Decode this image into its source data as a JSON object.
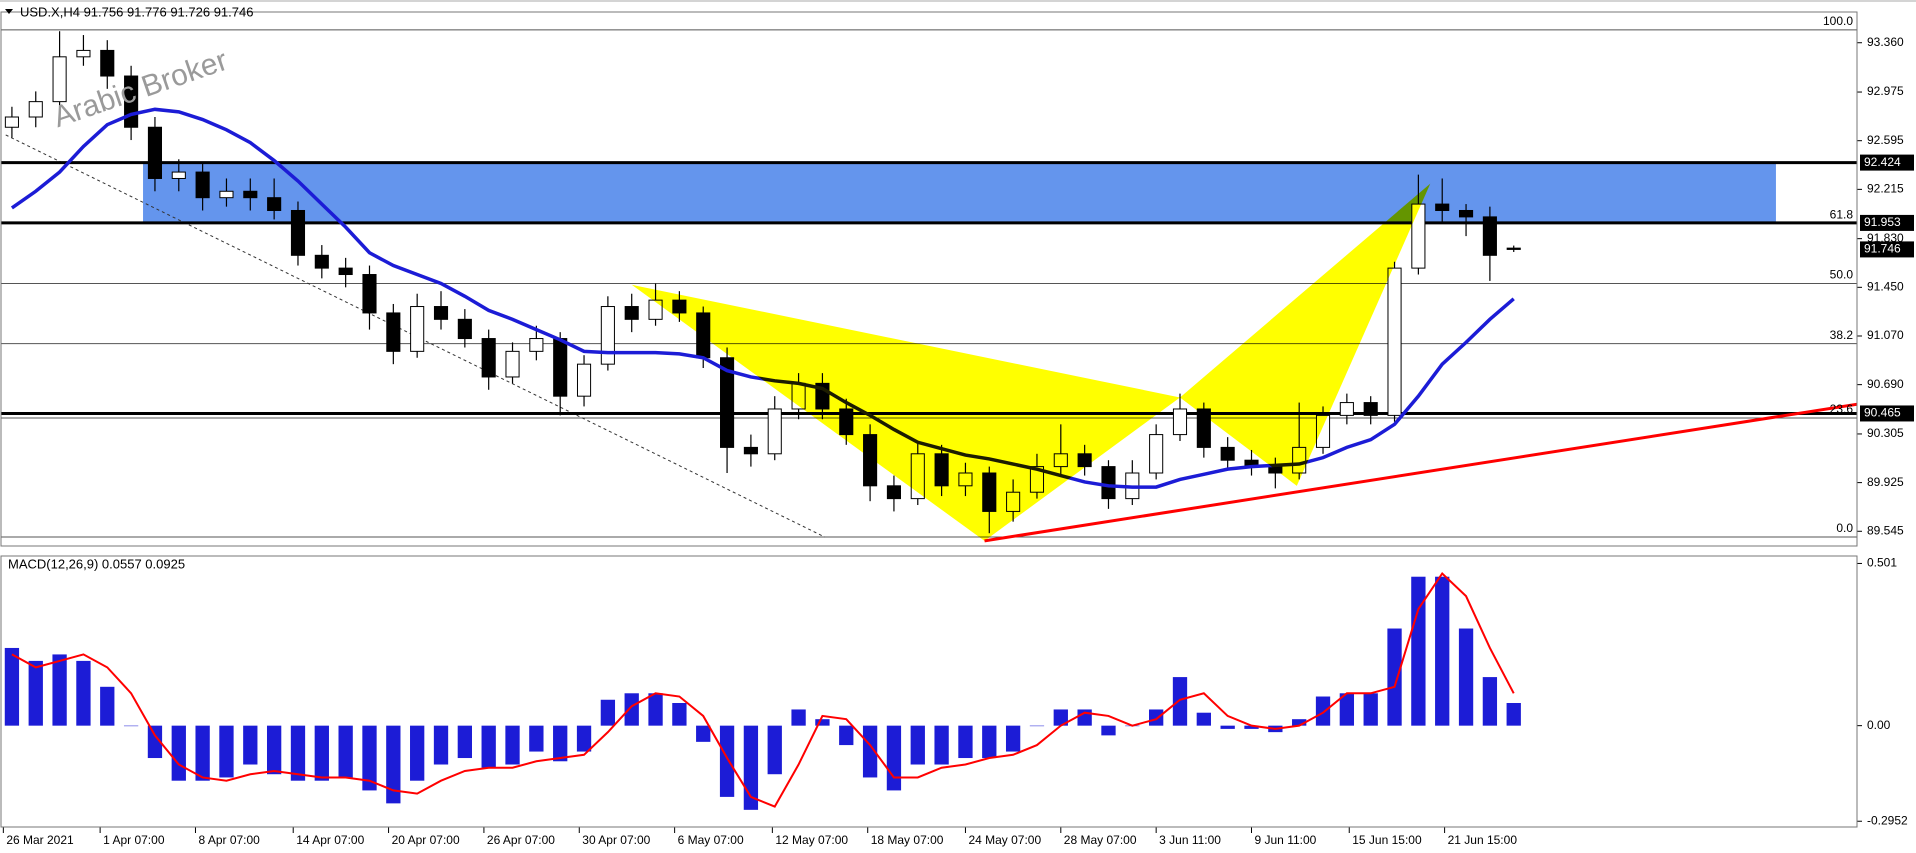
{
  "chart_data": [
    {
      "type": "candlestick",
      "title": "USD.X,H4 91.756 91.776 91.726 91.746",
      "watermark": "Arabic Broker",
      "xlim": [
        -0.5,
        77.4
      ],
      "xticks": [
        {
          "value": -0.36,
          "label": "26 Mar 2021"
        },
        {
          "value": 3.7,
          "label": "1 Apr 07:00"
        },
        {
          "value": 7.7,
          "label": "8 Apr 07:00"
        },
        {
          "value": 11.8,
          "label": "14 Apr 07:00"
        },
        {
          "value": 15.8,
          "label": "20 Apr 07:00"
        },
        {
          "value": 19.8,
          "label": "26 Apr 07:00"
        },
        {
          "value": 23.8,
          "label": "30 Apr 07:00"
        },
        {
          "value": 27.8,
          "label": "6 May 07:00"
        },
        {
          "value": 31.9,
          "label": "12 May 07:00"
        },
        {
          "value": 35.9,
          "label": "18 May 07:00"
        },
        {
          "value": 40.0,
          "label": "24 May 07:00"
        },
        {
          "value": 44.0,
          "label": "28 May 07:00"
        },
        {
          "value": 48.0,
          "label": "3 Jun 11:00"
        },
        {
          "value": 52.0,
          "label": "9 Jun 11:00"
        },
        {
          "value": 56.1,
          "label": "15 Jun 15:00"
        },
        {
          "value": 60.1,
          "label": "21 Jun 15:00"
        }
      ],
      "ylim": [
        89.43,
        93.6
      ],
      "yticks": [
        {
          "value": 93.36,
          "label": "93.360"
        },
        92.975,
        92.595,
        92.215,
        {
          "value": 91.83,
          "label": "91.830"
        },
        {
          "value": 91.45,
          "label": "91.450"
        },
        {
          "value": 91.07,
          "label": "91.070"
        },
        {
          "value": 90.69,
          "label": "90.690"
        },
        90.305,
        89.925,
        89.545
      ],
      "up_color": "#ffffff",
      "down_color": "#000000",
      "open": [
        92.7,
        92.78,
        92.9,
        93.25,
        93.3,
        93.1,
        92.7,
        92.3,
        92.35,
        92.15,
        92.2,
        92.15,
        92.05,
        91.7,
        91.6,
        91.55,
        91.25,
        90.95,
        91.3,
        91.2,
        91.05,
        90.75,
        90.95,
        91.05,
        90.6,
        90.85,
        91.3,
        91.2,
        91.35,
        91.25,
        90.9,
        90.2,
        90.15,
        90.5,
        90.7,
        90.5,
        90.3,
        89.9,
        89.8,
        90.15,
        89.9,
        90.0,
        89.7,
        89.85,
        90.05,
        90.15,
        90.05,
        89.8,
        90.0,
        90.3,
        90.5,
        90.2,
        90.1,
        90.05,
        90.0,
        90.2,
        90.45,
        90.55,
        90.45,
        91.6,
        92.1,
        92.05,
        92.0,
        91.756
      ],
      "high": [
        92.86,
        92.98,
        93.45,
        93.42,
        93.38,
        93.18,
        92.78,
        92.45,
        92.42,
        92.3,
        92.3,
        92.3,
        92.12,
        91.78,
        91.68,
        91.62,
        91.32,
        91.4,
        91.42,
        91.28,
        91.12,
        91.02,
        91.15,
        91.1,
        90.92,
        91.38,
        91.4,
        91.48,
        91.42,
        91.3,
        90.98,
        90.3,
        90.6,
        90.78,
        90.78,
        90.58,
        90.38,
        89.98,
        90.25,
        90.22,
        90.08,
        90.05,
        89.95,
        90.15,
        90.38,
        90.22,
        90.1,
        90.1,
        90.38,
        90.62,
        90.55,
        90.28,
        90.18,
        90.12,
        90.55,
        90.52,
        90.62,
        90.6,
        91.65,
        92.33,
        92.3,
        92.1,
        92.08,
        91.776
      ],
      "low": [
        92.62,
        92.7,
        92.82,
        93.18,
        93.0,
        92.6,
        92.2,
        92.2,
        92.05,
        92.08,
        92.05,
        91.98,
        91.62,
        91.52,
        91.45,
        91.12,
        90.85,
        90.9,
        91.12,
        90.98,
        90.65,
        90.7,
        90.88,
        90.45,
        90.52,
        90.8,
        91.1,
        91.15,
        91.18,
        90.82,
        90.0,
        90.05,
        90.1,
        90.42,
        90.42,
        90.22,
        89.78,
        89.7,
        89.75,
        89.82,
        89.82,
        89.53,
        89.62,
        89.8,
        89.98,
        89.98,
        89.72,
        89.75,
        89.95,
        90.25,
        90.12,
        90.02,
        89.98,
        89.88,
        89.95,
        90.15,
        90.38,
        90.38,
        90.4,
        91.55,
        91.95,
        91.85,
        91.5,
        91.726
      ],
      "close": [
        92.78,
        92.9,
        93.25,
        93.3,
        93.1,
        92.7,
        92.3,
        92.35,
        92.15,
        92.2,
        92.15,
        92.05,
        91.7,
        91.6,
        91.55,
        91.25,
        90.95,
        91.3,
        91.2,
        91.05,
        90.75,
        90.95,
        91.05,
        90.6,
        90.85,
        91.3,
        91.2,
        91.35,
        91.25,
        90.9,
        90.2,
        90.15,
        90.5,
        90.7,
        90.5,
        90.3,
        89.9,
        89.8,
        90.15,
        89.9,
        90.0,
        89.7,
        89.85,
        90.05,
        90.15,
        90.05,
        89.8,
        90.0,
        90.3,
        90.5,
        90.2,
        90.1,
        90.05,
        90.0,
        90.2,
        90.45,
        90.55,
        90.45,
        91.6,
        92.1,
        92.05,
        92.0,
        91.7,
        91.746
      ],
      "moving_average": {
        "color": "#1c1cd6",
        "values": [
          92.07,
          92.2,
          92.35,
          92.55,
          92.72,
          92.8,
          92.84,
          92.82,
          92.76,
          92.68,
          92.58,
          92.44,
          92.28,
          92.1,
          91.92,
          91.72,
          91.62,
          91.55,
          91.48,
          91.38,
          91.27,
          91.2,
          91.12,
          91.04,
          90.95,
          90.94,
          90.94,
          90.94,
          90.93,
          90.9,
          90.8,
          90.75,
          90.72,
          90.7,
          90.66,
          90.55,
          90.45,
          90.34,
          90.24,
          90.19,
          90.14,
          90.11,
          90.07,
          90.03,
          89.98,
          89.93,
          89.9,
          89.89,
          89.89,
          89.95,
          89.99,
          90.03,
          90.05,
          90.06,
          90.07,
          90.12,
          90.2,
          90.26,
          90.38,
          90.6,
          90.85,
          91.02,
          91.2,
          91.36
        ]
      },
      "levels": [
        92.424,
        91.953,
        90.465
      ],
      "fib_levels": [
        {
          "value": 93.46,
          "label": "100.0"
        },
        {
          "value": 91.95,
          "label": "61.8"
        },
        {
          "value": 91.48,
          "label": "50.0"
        },
        {
          "value": 91.01,
          "label": "38.2"
        },
        {
          "value": 90.43,
          "label": "23.6"
        },
        {
          "value": 89.5,
          "label": "0.0"
        }
      ],
      "zone": {
        "color": "#6495ed",
        "x": [
          5.5,
          74
        ],
        "y": [
          91.953,
          92.424
        ]
      },
      "pattern": {
        "color": "#ffff00",
        "x": [
          26,
          40.8,
          49,
          53.9,
          59.5
        ],
        "y": [
          91.47,
          89.47,
          90.59,
          89.9,
          92.26
        ]
      },
      "trendline": {
        "color": "#ff0000",
        "x": [
          40.8,
          79.9
        ],
        "y": [
          89.47,
          90.61
        ]
      },
      "channel_line": {
        "x": [
          -0.26,
          34.1
        ],
        "y": [
          92.64,
          89.5
        ]
      }
    },
    {
      "type": "macd",
      "title": "MACD(12,26,9) 0.0557 0.0925",
      "ylim": [
        -0.313,
        0.524
      ],
      "yticks": [
        0.501,
        {
          "value": 0,
          "label": "0.00"
        },
        -0.2952
      ],
      "histogram": {
        "color": "#1c1cd6",
        "values": [
          0.24,
          0.2,
          0.22,
          0.2,
          0.12,
          0.0,
          -0.1,
          -0.17,
          -0.17,
          -0.16,
          -0.12,
          -0.15,
          -0.17,
          -0.17,
          -0.16,
          -0.2,
          -0.24,
          -0.17,
          -0.12,
          -0.1,
          -0.13,
          -0.12,
          -0.08,
          -0.11,
          -0.08,
          0.08,
          0.1,
          0.1,
          0.07,
          -0.05,
          -0.22,
          -0.26,
          -0.15,
          0.05,
          0.02,
          -0.06,
          -0.16,
          -0.2,
          -0.12,
          -0.12,
          -0.1,
          -0.1,
          -0.08,
          0.0,
          0.05,
          0.05,
          -0.03,
          0.0,
          0.05,
          0.15,
          0.04,
          -0.01,
          -0.01,
          -0.02,
          0.02,
          0.09,
          0.1,
          0.1,
          0.3,
          0.46,
          0.46,
          0.3,
          0.15,
          0.07
        ]
      },
      "signal": {
        "color": "#ff0000",
        "values": [
          0.22,
          0.18,
          0.2,
          0.22,
          0.18,
          0.1,
          -0.03,
          -0.12,
          -0.16,
          -0.17,
          -0.15,
          -0.14,
          -0.15,
          -0.16,
          -0.16,
          -0.17,
          -0.2,
          -0.21,
          -0.17,
          -0.14,
          -0.13,
          -0.13,
          -0.11,
          -0.1,
          -0.09,
          -0.02,
          0.06,
          0.1,
          0.09,
          0.03,
          -0.1,
          -0.22,
          -0.25,
          -0.12,
          0.03,
          0.02,
          -0.06,
          -0.16,
          -0.16,
          -0.13,
          -0.12,
          -0.1,
          -0.09,
          -0.06,
          0.0,
          0.04,
          0.03,
          0.0,
          0.02,
          0.08,
          0.1,
          0.03,
          0.0,
          -0.01,
          0.0,
          0.04,
          0.1,
          0.1,
          0.12,
          0.36,
          0.47,
          0.4,
          0.24,
          0.1
        ]
      }
    }
  ]
}
